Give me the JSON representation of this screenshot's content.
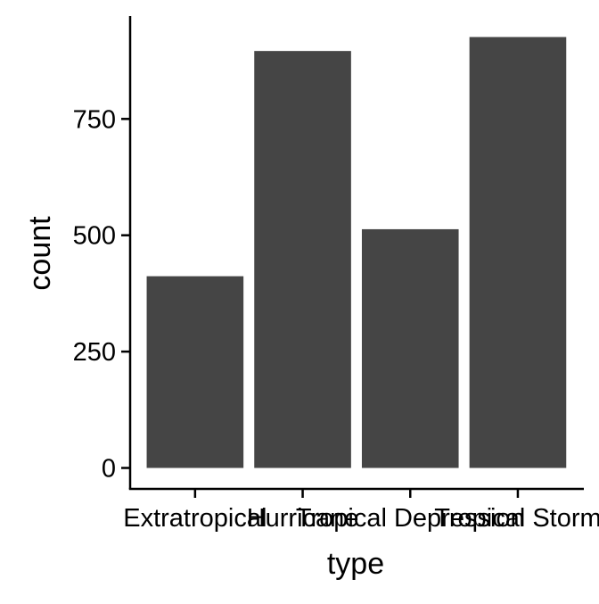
{
  "chart_data": {
    "type": "bar",
    "title": "",
    "xlabel": "type",
    "ylabel": "count",
    "categories": [
      "Extratropical",
      "Hurricane",
      "Tropical Depression",
      "Tropical Storm"
    ],
    "values": [
      412,
      896,
      513,
      926
    ],
    "ylim": [
      0,
      972
    ],
    "yticks": [
      0,
      250,
      500,
      750
    ],
    "grid": false,
    "legend": "none",
    "colors": {
      "bar": "#454545",
      "axis": "#000000",
      "background": "#ffffff"
    }
  }
}
